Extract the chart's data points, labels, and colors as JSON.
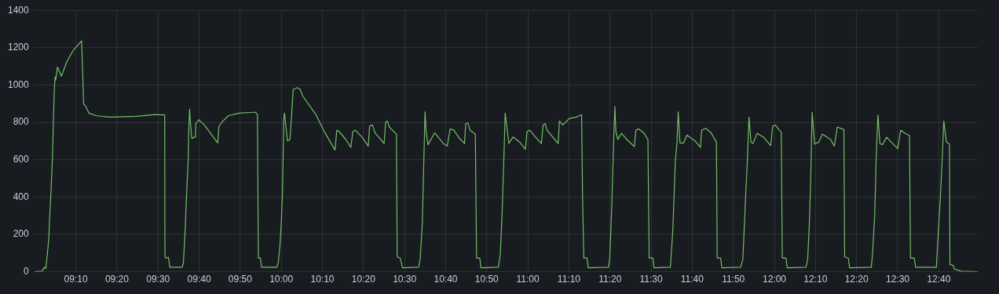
{
  "chart_data": {
    "type": "line",
    "grid": true,
    "legend": false,
    "marker": "none",
    "line_style": "solid",
    "xlim": [
      8.995,
      12.825
    ],
    "xticks": [
      {
        "value": 9.1667,
        "label": "09:10"
      },
      {
        "value": 9.3333,
        "label": "09:20"
      },
      {
        "value": 9.5,
        "label": "09:30"
      },
      {
        "value": 9.6667,
        "label": "09:40"
      },
      {
        "value": 9.8333,
        "label": "09:50"
      },
      {
        "value": 10,
        "label": "10:00"
      },
      {
        "value": 10.1667,
        "label": "10:10"
      },
      {
        "value": 10.3333,
        "label": "10:20"
      },
      {
        "value": 10.5,
        "label": "10:30"
      },
      {
        "value": 10.6667,
        "label": "10:40"
      },
      {
        "value": 10.8333,
        "label": "10:50"
      },
      {
        "value": 11,
        "label": "11:00"
      },
      {
        "value": 11.1667,
        "label": "11:10"
      },
      {
        "value": 11.3333,
        "label": "11:20"
      },
      {
        "value": 11.5,
        "label": "11:30"
      },
      {
        "value": 11.6667,
        "label": "11:40"
      },
      {
        "value": 11.8333,
        "label": "11:50"
      },
      {
        "value": 12,
        "label": "12:00"
      },
      {
        "value": 12.1667,
        "label": "12:10"
      },
      {
        "value": 12.3333,
        "label": "12:20"
      },
      {
        "value": 12.5,
        "label": "12:30"
      },
      {
        "value": 12.6667,
        "label": "12:40"
      }
    ],
    "ylim": [
      0,
      1400
    ],
    "yticks": [
      0,
      200,
      400,
      600,
      800,
      1000,
      1200,
      1400
    ],
    "series": [
      {
        "color": "#73bf69",
        "x": [
          9.0,
          9.03,
          9.038,
          9.045,
          9.05,
          9.057,
          9.06,
          9.065,
          9.072,
          9.075,
          9.08,
          9.083,
          9.085,
          9.092,
          9.108,
          9.13,
          9.157,
          9.172,
          9.19,
          9.195,
          9.198,
          9.207,
          9.22,
          9.252,
          9.305,
          9.412,
          9.487,
          9.527,
          9.528,
          9.533,
          9.542,
          9.548,
          9.598,
          9.603,
          9.61,
          9.615,
          9.622,
          9.625,
          9.628,
          9.632,
          9.637,
          9.652,
          9.653,
          9.665,
          9.688,
          9.742,
          9.747,
          9.763,
          9.785,
          9.827,
          9.885,
          9.895,
          9.903,
          9.907,
          9.915,
          9.92,
          9.982,
          9.988,
          9.995,
          10.0,
          10.005,
          10.01,
          10.013,
          10.018,
          10.025,
          10.035,
          10.042,
          10.048,
          10.065,
          10.077,
          10.087,
          10.14,
          10.177,
          10.218,
          10.225,
          10.235,
          10.262,
          10.282,
          10.29,
          10.3,
          10.327,
          10.353,
          10.358,
          10.37,
          10.38,
          10.417,
          10.423,
          10.43,
          10.438,
          10.467,
          10.47,
          10.482,
          10.492,
          10.557,
          10.563,
          10.572,
          10.578,
          10.583,
          10.588,
          10.595,
          10.622,
          10.657,
          10.673,
          10.685,
          10.7,
          10.722,
          10.743,
          10.748,
          10.757,
          10.765,
          10.787,
          10.792,
          10.805,
          10.81,
          10.88,
          10.888,
          10.895,
          10.903,
          10.908,
          10.923,
          10.94,
          10.967,
          10.99,
          10.997,
          11.008,
          11.03,
          11.055,
          11.062,
          11.07,
          11.078,
          11.123,
          11.128,
          11.142,
          11.168,
          11.195,
          11.218,
          11.222,
          11.227,
          11.24,
          11.245,
          11.327,
          11.332,
          11.34,
          11.348,
          11.353,
          11.357,
          11.365,
          11.38,
          11.402,
          11.432,
          11.438,
          11.45,
          11.47,
          11.487,
          11.492,
          11.507,
          11.512,
          11.578,
          11.588,
          11.598,
          11.605,
          11.61,
          11.617,
          11.632,
          11.645,
          11.678,
          11.7,
          11.705,
          11.722,
          11.743,
          11.765,
          11.768,
          11.782,
          11.787,
          11.863,
          11.872,
          11.882,
          11.89,
          11.897,
          11.905,
          11.913,
          11.93,
          11.955,
          11.985,
          11.993,
          12.003,
          12.028,
          12.032,
          12.047,
          12.052,
          12.128,
          12.135,
          12.142,
          12.148,
          12.153,
          12.163,
          12.18,
          12.195,
          12.228,
          12.243,
          12.255,
          12.282,
          12.285,
          12.3,
          12.305,
          12.393,
          12.398,
          12.407,
          12.413,
          12.42,
          12.428,
          12.438,
          12.455,
          12.5,
          12.512,
          12.527,
          12.548,
          12.552,
          12.567,
          12.573,
          12.657,
          12.665,
          12.673,
          12.682,
          12.687,
          12.698,
          12.71,
          12.712,
          12.725,
          12.73,
          12.757,
          12.825
        ],
        "values": [
          0,
          3,
          24,
          17,
          80,
          180,
          278,
          405,
          617,
          786,
          998,
          1043,
          1026,
          1096,
          1047,
          1125,
          1188,
          1209,
          1237,
          1040,
          899,
          885,
          849,
          835,
          828,
          832,
          842,
          840,
          80,
          73,
          78,
          24,
          24,
          52,
          222,
          391,
          588,
          772,
          871,
          786,
          715,
          722,
          793,
          814,
          786,
          690,
          779,
          807,
          835,
          849,
          854,
          854,
          842,
          73,
          73,
          24,
          24,
          52,
          151,
          264,
          433,
          814,
          849,
          786,
          701,
          708,
          842,
          976,
          986,
          976,
          941,
          842,
          744,
          652,
          758,
          751,
          708,
          666,
          751,
          758,
          722,
          673,
          779,
          786,
          744,
          687,
          800,
          807,
          775,
          737,
          80,
          73,
          21,
          24,
          66,
          257,
          588,
          857,
          744,
          680,
          744,
          687,
          673,
          765,
          758,
          715,
          687,
          793,
          797,
          758,
          737,
          73,
          73,
          21,
          24,
          88,
          292,
          617,
          849,
          687,
          722,
          694,
          656,
          751,
          758,
          722,
          687,
          786,
          793,
          758,
          687,
          807,
          786,
          821,
          828,
          840,
          391,
          73,
          73,
          21,
          24,
          66,
          334,
          701,
          885,
          751,
          708,
          741,
          708,
          670,
          758,
          765,
          744,
          708,
          73,
          73,
          21,
          24,
          222,
          588,
          694,
          857,
          690,
          690,
          732,
          701,
          666,
          758,
          768,
          744,
          694,
          73,
          73,
          21,
          24,
          66,
          363,
          588,
          828,
          694,
          687,
          741,
          722,
          676,
          779,
          786,
          746,
          73,
          73,
          21,
          24,
          66,
          264,
          532,
          854,
          684,
          694,
          737,
          708,
          673,
          775,
          761,
          80,
          73,
          21,
          24,
          95,
          306,
          617,
          840,
          687,
          680,
          720,
          659,
          758,
          744,
          729,
          73,
          73,
          24,
          24,
          222,
          391,
          645,
          807,
          694,
          684,
          38,
          35,
          14,
          3,
          0
        ]
      }
    ]
  }
}
